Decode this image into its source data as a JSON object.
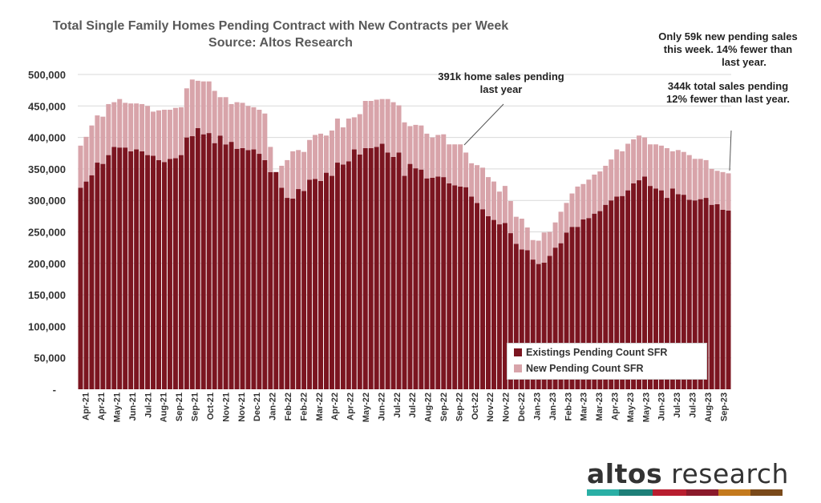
{
  "header": {
    "title": "Total Single Family Homes Pending Contract with New Contracts per Week",
    "subtitle": "Source: Altos Research"
  },
  "annotations": {
    "top_right_1": "Only 59k new pending sales",
    "top_right_2": "this week. 14% fewer than",
    "top_right_3": "last year.",
    "top_right_4": "344k total sales pending",
    "top_right_5": "12% fewer than last year.",
    "mid_1": "391k home sales pending",
    "mid_2": "last year"
  },
  "legend": {
    "existing": "Existings Pending Count SFR",
    "new": "New Pending Count SFR"
  },
  "logo": {
    "word1": "altos",
    "word2": " research"
  },
  "colors": {
    "existing": "#7B1520",
    "new": "#D8A4AA",
    "grid": "#D9D9D9",
    "logo_bar": [
      "#2AAFA5",
      "#1E7F78",
      "#B81E2F",
      "#8B1A2B",
      "#C47A1E",
      "#7A4A1A"
    ]
  },
  "chart_data": {
    "type": "bar",
    "stacked": true,
    "title": "Total Single Family Homes Pending Contract with New Contracts per Week",
    "subtitle": "Source: Altos Research",
    "xlabel": "",
    "ylabel": "",
    "ylim": [
      0,
      500000
    ],
    "yticks": [
      0,
      50000,
      100000,
      150000,
      200000,
      250000,
      300000,
      350000,
      400000,
      450000,
      500000
    ],
    "ytick_labels": [
      "-",
      "50,000",
      "100,000",
      "150,000",
      "200,000",
      "250,000",
      "300,000",
      "350,000",
      "400,000",
      "450,000",
      "500,000"
    ],
    "xtick_labels": [
      "Apr-21",
      "Apr-21",
      "May-21",
      "Jun-21",
      "Jul-21",
      "Aug-21",
      "Sep-21",
      "Sep-21",
      "Oct-21",
      "Nov-21",
      "Nov-21",
      "Dec-21",
      "Jan-22",
      "Feb-22",
      "Feb-22",
      "Mar-22",
      "Apr-22",
      "Apr-22",
      "May-22",
      "Jun-22",
      "Jul-22",
      "Jul-22",
      "Aug-22",
      "Sep-22",
      "Sep-22",
      "Oct-22",
      "Nov-22",
      "Nov-22",
      "Dec-22",
      "Jan-23",
      "Jan-23",
      "Feb-23",
      "Mar-23",
      "Mar-23",
      "Apr-23",
      "May-23",
      "May-23",
      "Jun-23",
      "Jul-23",
      "Jul-23",
      "Aug-23",
      "Sep-23"
    ],
    "series": [
      {
        "name": "Existings Pending Count SFR",
        "values": [
          320000,
          330000,
          340000,
          360000,
          358000,
          372000,
          385000,
          384000,
          384000,
          378000,
          381000,
          378000,
          372000,
          371000,
          364000,
          361000,
          366000,
          367000,
          372000,
          400000,
          402000,
          415000,
          405000,
          407000,
          391000,
          403000,
          389000,
          393000,
          382000,
          383000,
          380000,
          381000,
          374000,
          364000,
          345000,
          345000,
          320000,
          304000,
          303000,
          318000,
          315000,
          333000,
          334000,
          331000,
          344000,
          339000,
          360000,
          357000,
          362000,
          381000,
          373000,
          383000,
          383000,
          385000,
          390000,
          376000,
          369000,
          376000,
          339000,
          358000,
          351000,
          349000,
          335000,
          336000,
          338000,
          337000,
          327000,
          324000,
          322000,
          321000,
          306000,
          296000,
          286000,
          275000,
          269000,
          262000,
          264000,
          248000,
          231000,
          222000,
          221000,
          206000,
          199000,
          201000,
          212000,
          225000,
          232000,
          249000,
          258000,
          258000,
          270000,
          272000,
          279000,
          283000,
          293000,
          300000,
          306000,
          307000,
          316000,
          327000,
          332000,
          338000,
          323000,
          319000,
          316000,
          304000,
          319000,
          310000,
          309000,
          301000,
          300000,
          302000,
          304000,
          293000,
          294000,
          285000,
          284000
        ]
      },
      {
        "name": "New Pending Count SFR",
        "values": [
          67000,
          71000,
          79000,
          75000,
          75000,
          81000,
          71000,
          77000,
          71000,
          76000,
          73000,
          75000,
          78000,
          70000,
          79000,
          83000,
          78000,
          80000,
          76000,
          78000,
          90000,
          75000,
          84000,
          82000,
          83000,
          61000,
          75000,
          60000,
          74000,
          72000,
          70000,
          67000,
          70000,
          74000,
          40000,
          0,
          35000,
          60000,
          75000,
          62000,
          62000,
          63000,
          70000,
          75000,
          59000,
          72000,
          70000,
          59000,
          68000,
          51000,
          64000,
          75000,
          75000,
          75000,
          71000,
          85000,
          87000,
          75000,
          85000,
          60000,
          69000,
          70000,
          71000,
          64000,
          66000,
          68000,
          62000,
          65000,
          67000,
          55000,
          53000,
          60000,
          66000,
          62000,
          61000,
          52000,
          59000,
          51000,
          43000,
          49000,
          36000,
          31000,
          37000,
          48000,
          38000,
          40000,
          50000,
          47000,
          53000,
          64000,
          56000,
          61000,
          62000,
          63000,
          62000,
          65000,
          75000,
          71000,
          74000,
          70000,
          71000,
          62000,
          66000,
          70000,
          71000,
          79000,
          59000,
          70000,
          68000,
          71000,
          66000,
          64000,
          60000,
          57000,
          53000,
          60000,
          59000
        ]
      }
    ],
    "annotations": [
      "391k home sales pending last year",
      "Only 59k new pending sales this week. 14% fewer than last year.",
      "344k total sales pending 12% fewer than last year."
    ],
    "legend": "bottom-right inside"
  }
}
